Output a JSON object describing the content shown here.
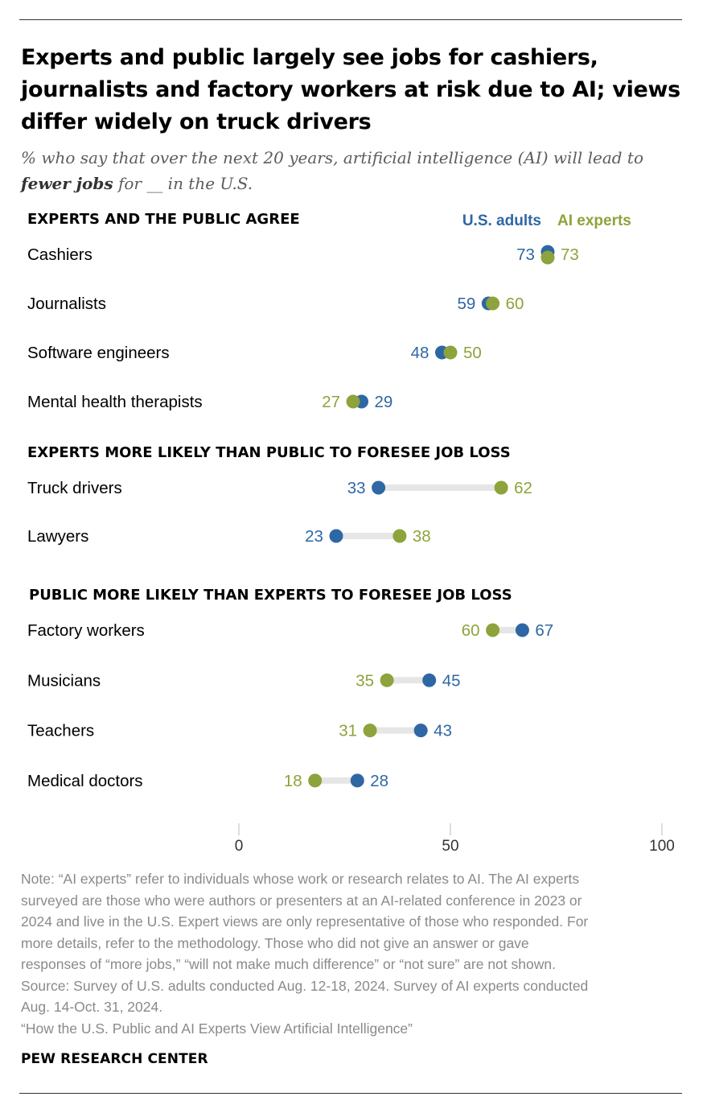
{
  "title": "Experts and public largely see jobs for cashiers, journalists and factory workers at risk due to AI; views differ widely on truck drivers",
  "subtitle": {
    "lead": "% who say that over the next 20 years, artificial intelligence (AI) will lead to",
    "emphasis": "fewer jobs",
    "tail": "for __ in the U.S."
  },
  "colors": {
    "us_adults": "#2f67a4",
    "ai_experts": "#8da33b",
    "connector": "#e6e6e6",
    "axis_tick": "#bbbbbb"
  },
  "chart_data": {
    "type": "dot-plot",
    "legend": {
      "us_adults": "U.S. adults",
      "ai_experts": "AI experts",
      "placement": "top-right"
    },
    "xlim": [
      0,
      100
    ],
    "x_ticks": [
      0,
      50,
      100
    ],
    "x_tick_labels": [
      "0",
      "50",
      "100"
    ],
    "grid": false,
    "groups": [
      {
        "heading": "EXPERTS AND THE PUBLIC AGREE",
        "items": [
          {
            "label": "Cashiers",
            "us_adults": 73,
            "ai_experts": 73
          },
          {
            "label": "Journalists",
            "us_adults": 59,
            "ai_experts": 60
          },
          {
            "label": "Software engineers",
            "us_adults": 48,
            "ai_experts": 50
          },
          {
            "label": "Mental health therapists",
            "us_adults": 29,
            "ai_experts": 27
          }
        ]
      },
      {
        "heading": "EXPERTS MORE LIKELY THAN PUBLIC TO FORESEE JOB LOSS",
        "items": [
          {
            "label": "Truck drivers",
            "us_adults": 33,
            "ai_experts": 62
          },
          {
            "label": "Lawyers",
            "us_adults": 23,
            "ai_experts": 38
          }
        ]
      },
      {
        "heading": "PUBLIC MORE LIKELY THAN EXPERTS TO FORESEE JOB LOSS",
        "items": [
          {
            "label": "Factory workers",
            "us_adults": 67,
            "ai_experts": 60
          },
          {
            "label": "Musicians",
            "us_adults": 45,
            "ai_experts": 35
          },
          {
            "label": "Teachers",
            "us_adults": 43,
            "ai_experts": 31
          },
          {
            "label": "Medical doctors",
            "us_adults": 28,
            "ai_experts": 18
          }
        ]
      }
    ]
  },
  "note_lines": [
    "Note: “AI experts” refer to individuals whose work or research relates to AI. The AI experts",
    "surveyed are those who were authors or presenters at an AI-related conference in 2023 or",
    "2024 and live in the U.S. Expert views are only representative of those who responded. For",
    "more details, refer to the methodology. Those who did not give an answer or gave",
    "responses of “more jobs,” “will not make much difference” or “not sure” are not shown.",
    "Source: Survey of U.S. adults conducted Aug. 12-18, 2024. Survey of AI experts conducted",
    "Aug. 14-Oct. 31, 2024.",
    "“How the U.S. Public and AI Experts View Artificial Intelligence”"
  ],
  "brand": "PEW RESEARCH CENTER"
}
